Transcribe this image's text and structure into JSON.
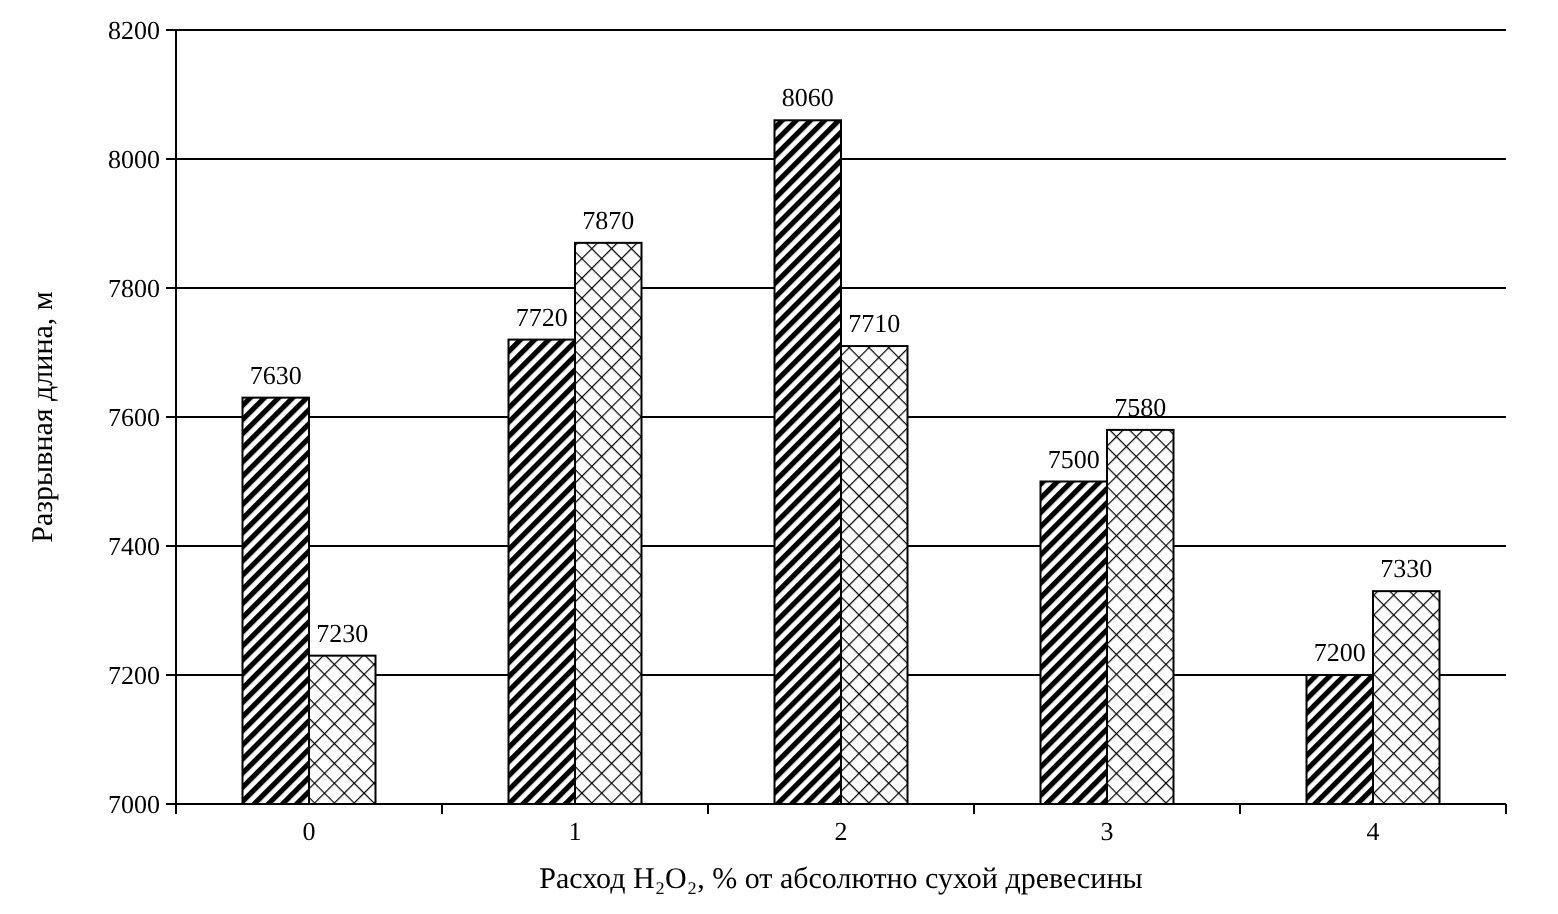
{
  "chart_data": {
    "type": "bar",
    "xlabel": "Расход H₂O₂, % от абсолютно сухой древесины",
    "ylabel": "Разрывная длина, м",
    "categories": [
      "0",
      "1",
      "2",
      "3",
      "4"
    ],
    "series": [
      {
        "color": "#000000",
        "values": [
          7630,
          7720,
          8060,
          7500,
          7200
        ]
      },
      {
        "color": "#000000",
        "values": [
          7230,
          7870,
          7710,
          7580,
          7330
        ]
      }
    ],
    "ylim": [
      7000,
      8200
    ],
    "yticks": [
      7000,
      7200,
      7400,
      7600,
      7800,
      8000,
      8200
    ],
    "grid": "y",
    "data_labels": true
  }
}
